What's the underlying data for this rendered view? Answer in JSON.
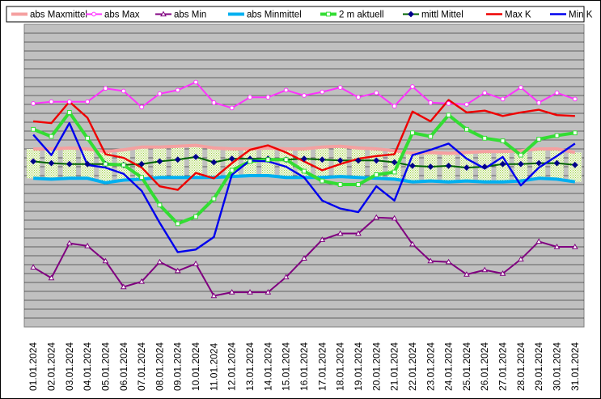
{
  "chart_data": {
    "type": "line",
    "title": "",
    "xlabel": "",
    "ylabel": "",
    "grid": true,
    "legend_position": "top",
    "ylim": [
      0,
      34
    ],
    "categories": [
      "01.01.2024",
      "02.01.2024",
      "03.01.2024",
      "04.01.2024",
      "05.01.2024",
      "06.01.2024",
      "07.01.2024",
      "08.01.2024",
      "09.01.2024",
      "10.01.2024",
      "11.01.2024",
      "12.01.2024",
      "13.01.2024",
      "14.01.2024",
      "15.01.2024",
      "16.01.2024",
      "17.01.2024",
      "18.01.2024",
      "19.01.2024",
      "20.01.2024",
      "21.01.2024",
      "22.01.2024",
      "23.01.2024",
      "24.01.2024",
      "25.01.2024",
      "26.01.2024",
      "27.01.2024",
      "28.01.2024",
      "29.01.2024",
      "30.01.2024",
      "31.01.2024"
    ],
    "series": [
      {
        "name": "abs Maxmittel",
        "color": "#f5a0a0",
        "marker": "none",
        "values": [
          20.0,
          20.0,
          20.1,
          20.0,
          19.7,
          19.9,
          20.2,
          20.2,
          20.3,
          20.4,
          20.1,
          20.0,
          20.0,
          20.1,
          20.0,
          20.0,
          20.2,
          20.3,
          20.1,
          20.0,
          19.8,
          19.5,
          19.6,
          19.5,
          19.6,
          19.7,
          19.7,
          19.8,
          20.0,
          20.0,
          19.6
        ]
      },
      {
        "name": "abs Max",
        "color": "#ff33ff",
        "marker": "circle",
        "values": [
          25.1,
          25.3,
          25.3,
          25.3,
          26.8,
          26.5,
          24.7,
          26.2,
          26.6,
          27.5,
          25.2,
          24.6,
          25.8,
          25.8,
          26.6,
          26.0,
          26.4,
          26.9,
          25.8,
          26.3,
          24.8,
          27.0,
          25.2,
          25.1,
          25.0,
          26.3,
          25.6,
          26.9,
          25.2,
          26.3,
          25.6
        ]
      },
      {
        "name": "abs Min",
        "color": "#800080",
        "marker": "triangle",
        "values": [
          6.7,
          5.5,
          9.4,
          9.1,
          7.4,
          4.5,
          5.1,
          7.3,
          6.3,
          7.1,
          3.5,
          3.9,
          3.9,
          3.9,
          5.6,
          7.7,
          9.8,
          10.5,
          10.5,
          12.3,
          12.2,
          9.3,
          7.4,
          7.3,
          5.9,
          6.4,
          6.0,
          7.6,
          9.6,
          9.0,
          9.0
        ]
      },
      {
        "name": "abs Minmittel",
        "color": "#00b0f0",
        "marker": "none",
        "values": [
          16.7,
          16.6,
          16.7,
          16.7,
          16.2,
          16.5,
          16.6,
          16.8,
          16.8,
          16.8,
          16.8,
          16.9,
          17.0,
          17.0,
          16.8,
          16.8,
          16.8,
          16.9,
          16.8,
          16.7,
          16.6,
          16.3,
          16.4,
          16.3,
          16.4,
          16.3,
          16.3,
          16.4,
          16.7,
          16.6,
          16.3
        ]
      },
      {
        "name": "2 m aktuell",
        "color": "#33dd33",
        "marker": "square",
        "values": [
          22.2,
          21.4,
          24.1,
          21.2,
          18.3,
          18.2,
          16.8,
          13.7,
          11.6,
          12.4,
          14.4,
          17.6,
          18.6,
          18.8,
          18.8,
          17.5,
          16.4,
          16.0,
          16.0,
          17.1,
          17.4,
          21.8,
          21.4,
          23.8,
          22.2,
          21.2,
          20.9,
          19.3,
          21.1,
          21.5,
          21.8
        ]
      },
      {
        "name": "mittl Mittel",
        "color": "#006400",
        "marker": "diamond",
        "values": [
          18.6,
          18.4,
          18.3,
          18.3,
          18.3,
          18.2,
          18.3,
          18.6,
          18.8,
          19.1,
          18.5,
          18.9,
          18.9,
          18.9,
          18.8,
          18.9,
          18.8,
          18.7,
          18.7,
          18.7,
          18.5,
          18.1,
          18.0,
          18.1,
          17.9,
          18.0,
          18.3,
          18.3,
          18.4,
          18.4,
          18.2
        ]
      },
      {
        "name": "Max K",
        "color": "#ee0000",
        "marker": "none",
        "values": [
          23.1,
          22.9,
          25.3,
          23.5,
          19.4,
          19.0,
          17.9,
          15.8,
          15.4,
          17.3,
          16.7,
          18.4,
          19.9,
          20.4,
          19.6,
          18.6,
          17.6,
          18.3,
          18.9,
          19.2,
          19.4,
          24.2,
          23.1,
          25.5,
          24.1,
          24.3,
          23.7,
          24.1,
          24.4,
          23.8,
          23.7
        ]
      },
      {
        "name": "Min K",
        "color": "#0000ee",
        "marker": "none",
        "values": [
          21.6,
          19.3,
          22.9,
          18.2,
          17.9,
          17.2,
          15.3,
          11.7,
          8.4,
          8.7,
          10.1,
          17.1,
          18.7,
          18.6,
          18.0,
          16.8,
          14.2,
          13.3,
          12.9,
          15.8,
          14.2,
          19.3,
          19.9,
          20.6,
          18.9,
          17.8,
          19.1,
          15.9,
          17.9,
          19.2,
          20.6
        ]
      }
    ]
  }
}
